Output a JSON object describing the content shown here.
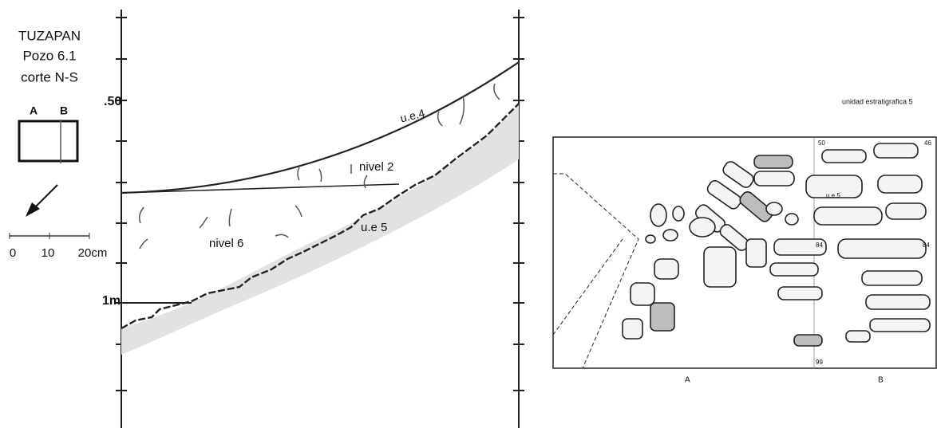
{
  "legend": {
    "title": "TUZAPAN",
    "pozo": "Pozo 6.1",
    "corte": "corte N-S",
    "box_labels": [
      "A",
      "B"
    ],
    "scale_labels": [
      "0",
      "10",
      "20cm"
    ]
  },
  "section": {
    "depth_labels": [
      ".50",
      "1m"
    ],
    "layer_labels": [
      "u.e.4",
      "nivel 2",
      "nivel 6",
      "u.e 5"
    ]
  },
  "plan": {
    "title": "unidad estratigrafica 5",
    "corner_labels": [
      "50",
      "46"
    ],
    "unit_label": "u.e.5",
    "mid_labels": [
      "84",
      "84"
    ],
    "bottom_label": "99",
    "axis_labels": [
      "A",
      "B"
    ]
  }
}
